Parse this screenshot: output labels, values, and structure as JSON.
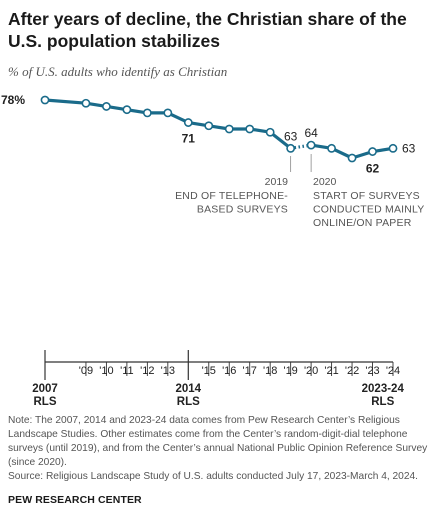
{
  "header": {
    "title": "After years of decline, the Christian share of the U.S. population stabilizes",
    "subtitle": "% of U.S. adults who identify as Christian"
  },
  "chart_data": {
    "type": "line",
    "unit": "%",
    "x": [
      2007,
      2009,
      2010,
      2011,
      2012,
      2013,
      2014,
      2015,
      2016,
      2017,
      2018,
      2019,
      2020,
      2021,
      2022,
      2023,
      2024
    ],
    "series": [
      {
        "values": [
          78,
          77,
          76,
          75,
          74,
          74,
          71,
          70,
          69,
          69,
          68,
          63,
          64,
          63,
          60,
          62,
          63
        ],
        "labels": [
          "78%",
          "",
          "",
          "",
          "",
          "",
          "71",
          "",
          "",
          "",
          "",
          "63",
          "64",
          "",
          "",
          "62",
          "63"
        ],
        "color": "#1a6b8a"
      }
    ],
    "segments": [
      {
        "from": 2007,
        "to": 2019,
        "style": "solid",
        "note": "RLS and telephone surveys"
      },
      {
        "from": 2019,
        "to": 2020,
        "style": "dotted"
      },
      {
        "from": 2020,
        "to": 2024,
        "style": "solid"
      }
    ],
    "annotations": [
      {
        "year_label": "2019",
        "text_lines": [
          "END OF TELEPHONE-",
          "BASED SURVEYS"
        ]
      },
      {
        "year_label": "2020",
        "text_lines": [
          "START OF SURVEYS",
          "CONDUCTED MAINLY",
          "ONLINE/ON PAPER"
        ]
      }
    ],
    "ylim": [
      55,
      80
    ],
    "axis": {
      "ticks": [
        {
          "year": 2007,
          "label": "2007",
          "sub": "RLS",
          "major": true
        },
        {
          "year": 2009,
          "label": "'09"
        },
        {
          "year": 2010,
          "label": "'10"
        },
        {
          "year": 2011,
          "label": "'11"
        },
        {
          "year": 2012,
          "label": "'12"
        },
        {
          "year": 2013,
          "label": "'13"
        },
        {
          "year": 2014,
          "label": "2014",
          "sub": "RLS",
          "major": true
        },
        {
          "year": 2015,
          "label": "'15"
        },
        {
          "year": 2016,
          "label": "'16"
        },
        {
          "year": 2017,
          "label": "'17"
        },
        {
          "year": 2018,
          "label": "'18"
        },
        {
          "year": 2019,
          "label": "'19"
        },
        {
          "year": 2020,
          "label": "'20"
        },
        {
          "year": 2021,
          "label": "'21"
        },
        {
          "year": 2022,
          "label": "'22"
        },
        {
          "year": 2023,
          "label": "'23"
        },
        {
          "year": 2024,
          "label": "'24"
        },
        {
          "year": 2023.5,
          "label": "2023-24",
          "sub": "RLS",
          "major": true,
          "label_only": true
        }
      ]
    },
    "colors": {
      "line": "#1a6b8a",
      "axis": "#333333",
      "text": "#222222",
      "annotation": "#555555"
    }
  },
  "footer": {
    "note": "Note: The 2007, 2014 and 2023-24 data comes from Pew Research Center’s Religious Landscape Studies. Other estimates come from the Center’s random-digit-dial telephone surveys (until 2019), and from the Center’s annual National Public Opinion Reference Survey (since 2020).",
    "source": "Source: Religious Landscape Study of U.S. adults conducted July 17, 2023-March 4, 2024.",
    "org": "PEW RESEARCH CENTER"
  }
}
